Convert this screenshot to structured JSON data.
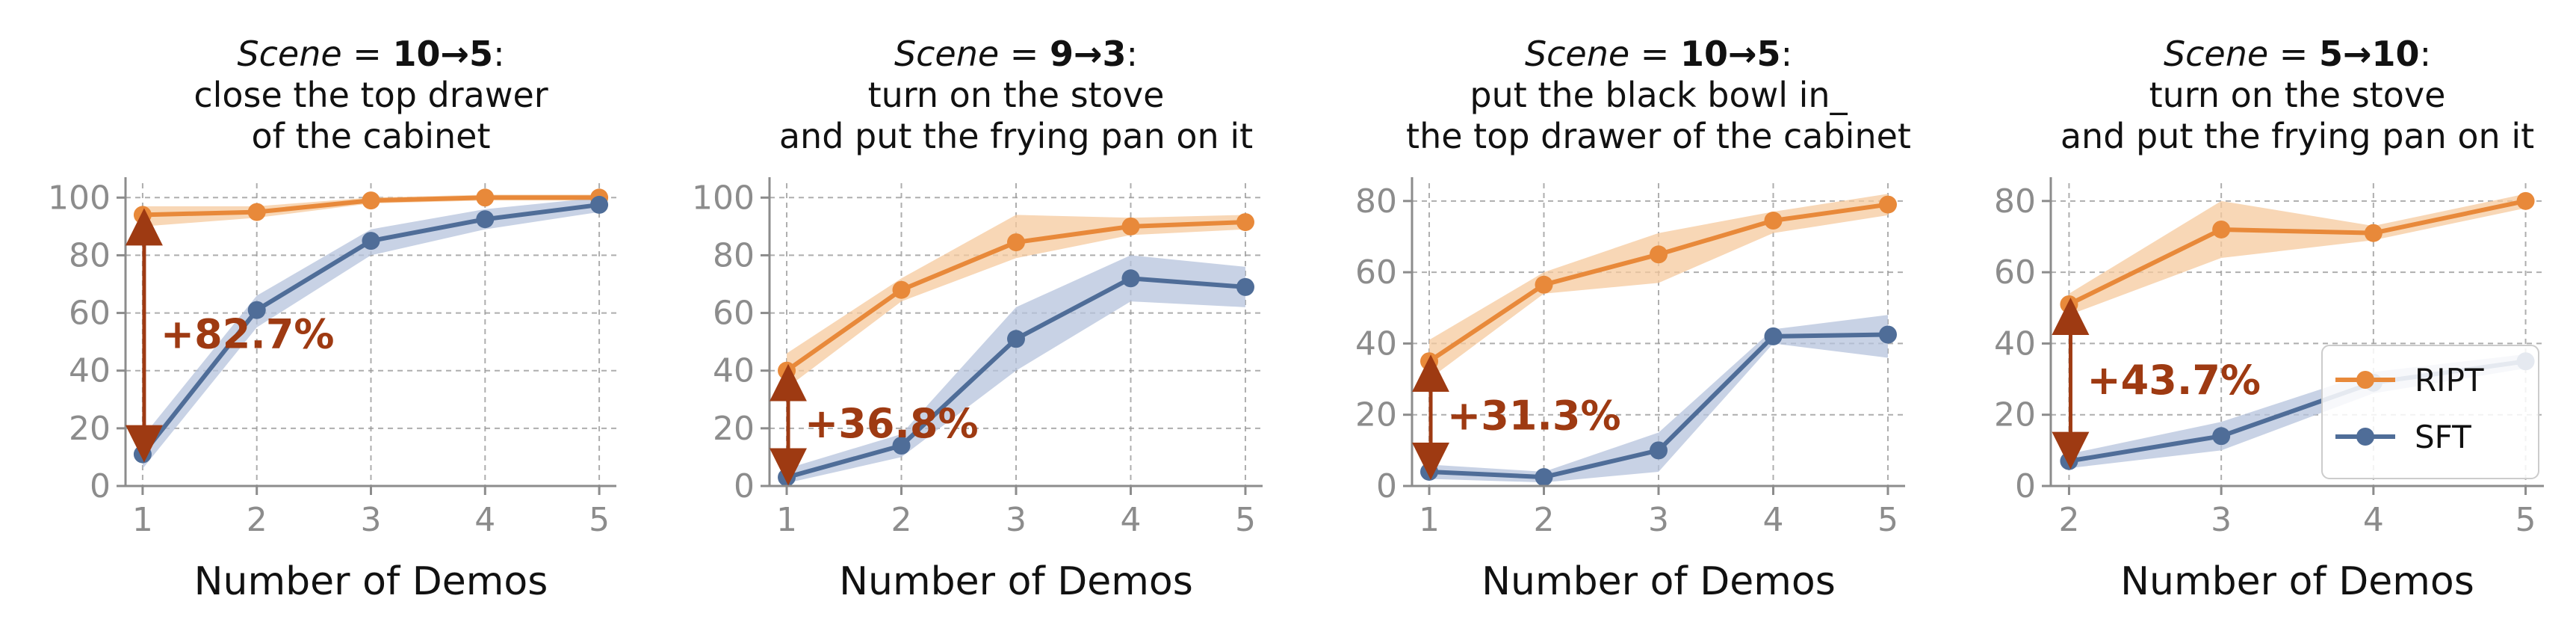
{
  "colors": {
    "ript": "#e8893a",
    "ript_band": "#f5c99d",
    "sft": "#4f6d98",
    "sft_band": "#b5c3dc",
    "arrow": "#9e3a12",
    "axis": "#8c8c8c",
    "grid": "#9a9a9a"
  },
  "legend": {
    "items": [
      {
        "label": "RIPT",
        "color_key": "ript"
      },
      {
        "label": "SFT",
        "color_key": "sft"
      }
    ],
    "location": "lower-right of panel 4"
  },
  "chart_data": [
    {
      "type": "line",
      "title": {
        "italic": "Scene",
        "eq": " = ",
        "bold": "10→5",
        "colon": ":",
        "lines": [
          "close the top drawer",
          "of the cabinet"
        ]
      },
      "xlabel": "Number of Demos",
      "x": [
        1,
        2,
        3,
        4,
        5
      ],
      "xticks": [
        "1",
        "2",
        "3",
        "4",
        "5"
      ],
      "xlim": [
        0.85,
        5.15
      ],
      "ylim": [
        0,
        105
      ],
      "yticks": [
        0,
        20,
        40,
        60,
        80,
        100
      ],
      "series": [
        {
          "name": "RIPT",
          "values": [
            94,
            95,
            99,
            100,
            100
          ],
          "band_lower": [
            90,
            93,
            98,
            99,
            99
          ],
          "band_upper": [
            97,
            97,
            100,
            101,
            101
          ]
        },
        {
          "name": "SFT",
          "values": [
            11,
            61,
            85,
            92.5,
            97.5
          ],
          "band_lower": [
            6,
            55,
            80,
            89,
            95
          ],
          "band_upper": [
            17,
            66,
            89,
            96,
            100
          ]
        }
      ],
      "annotation": {
        "text": "+82.7%",
        "x": 1,
        "y_from": 11,
        "y_to": 94,
        "text_y": 53
      }
    },
    {
      "type": "line",
      "title": {
        "italic": "Scene",
        "eq": " = ",
        "bold": "9→3",
        "colon": ":",
        "lines": [
          "turn on the stove",
          "and put the frying pan on it"
        ]
      },
      "xlabel": "Number of Demos",
      "x": [
        1,
        2,
        3,
        4,
        5
      ],
      "xticks": [
        "1",
        "2",
        "3",
        "4",
        "5"
      ],
      "xlim": [
        0.85,
        5.15
      ],
      "ylim": [
        0,
        105
      ],
      "yticks": [
        0,
        20,
        40,
        60,
        80,
        100
      ],
      "series": [
        {
          "name": "RIPT",
          "values": [
            40,
            68,
            84.5,
            90,
            91.5
          ],
          "band_lower": [
            34,
            64,
            79,
            87,
            89
          ],
          "band_upper": [
            46,
            72,
            94,
            93,
            94
          ]
        },
        {
          "name": "SFT",
          "values": [
            3,
            14,
            51,
            72,
            69
          ],
          "band_lower": [
            1,
            10,
            40,
            64,
            62
          ],
          "band_upper": [
            6,
            18,
            62,
            80,
            76
          ]
        }
      ],
      "annotation": {
        "text": "+36.8%",
        "x": 1,
        "y_from": 3,
        "y_to": 40,
        "text_y": 22
      }
    },
    {
      "type": "line",
      "title": {
        "italic": "Scene",
        "eq": " = ",
        "bold": "10→5",
        "colon": ":",
        "lines": [
          "put the black bowl in_",
          "the top drawer of the cabinet"
        ]
      },
      "xlabel": "Number of Demos",
      "x": [
        1,
        2,
        3,
        4,
        5
      ],
      "xticks": [
        "1",
        "2",
        "3",
        "4",
        "5"
      ],
      "xlim": [
        0.85,
        5.15
      ],
      "ylim": [
        0,
        85
      ],
      "yticks": [
        0,
        20,
        40,
        60,
        80
      ],
      "series": [
        {
          "name": "RIPT",
          "values": [
            35,
            56.5,
            65,
            74.5,
            79
          ],
          "band_lower": [
            30,
            54,
            57,
            71,
            76
          ],
          "band_upper": [
            41,
            60,
            71,
            77,
            82
          ]
        },
        {
          "name": "SFT",
          "values": [
            4,
            2.5,
            10,
            42,
            42.5
          ],
          "band_lower": [
            2,
            1,
            4,
            40,
            36
          ],
          "band_upper": [
            6,
            4,
            15,
            44,
            48
          ]
        }
      ],
      "annotation": {
        "text": "+31.3%",
        "x": 1,
        "y_from": 4,
        "y_to": 35,
        "text_y": 20
      }
    },
    {
      "type": "line",
      "title": {
        "italic": "Scene",
        "eq": " = ",
        "bold": "5→10",
        "colon": ":",
        "lines": [
          "turn on the stove",
          "and put the frying pan on it"
        ]
      },
      "xlabel": "Number of Demos",
      "x": [
        2,
        3,
        4,
        5
      ],
      "xticks": [
        "2",
        "3",
        "4",
        "5"
      ],
      "xlim": [
        1.88,
        5.12
      ],
      "ylim": [
        0,
        85
      ],
      "yticks": [
        0,
        20,
        40,
        60,
        80
      ],
      "series": [
        {
          "name": "RIPT",
          "values": [
            51,
            72,
            71,
            80
          ],
          "band_lower": [
            48,
            64,
            69,
            78
          ],
          "band_upper": [
            54,
            80,
            73,
            82
          ]
        },
        {
          "name": "SFT",
          "values": [
            7,
            14,
            29,
            35
          ],
          "band_lower": [
            5,
            10,
            26,
            33
          ],
          "band_upper": [
            9,
            18,
            32,
            37
          ]
        }
      ],
      "annotation": {
        "text": "+43.7%",
        "x": 2,
        "y_from": 7,
        "y_to": 51,
        "text_y": 30
      }
    }
  ]
}
